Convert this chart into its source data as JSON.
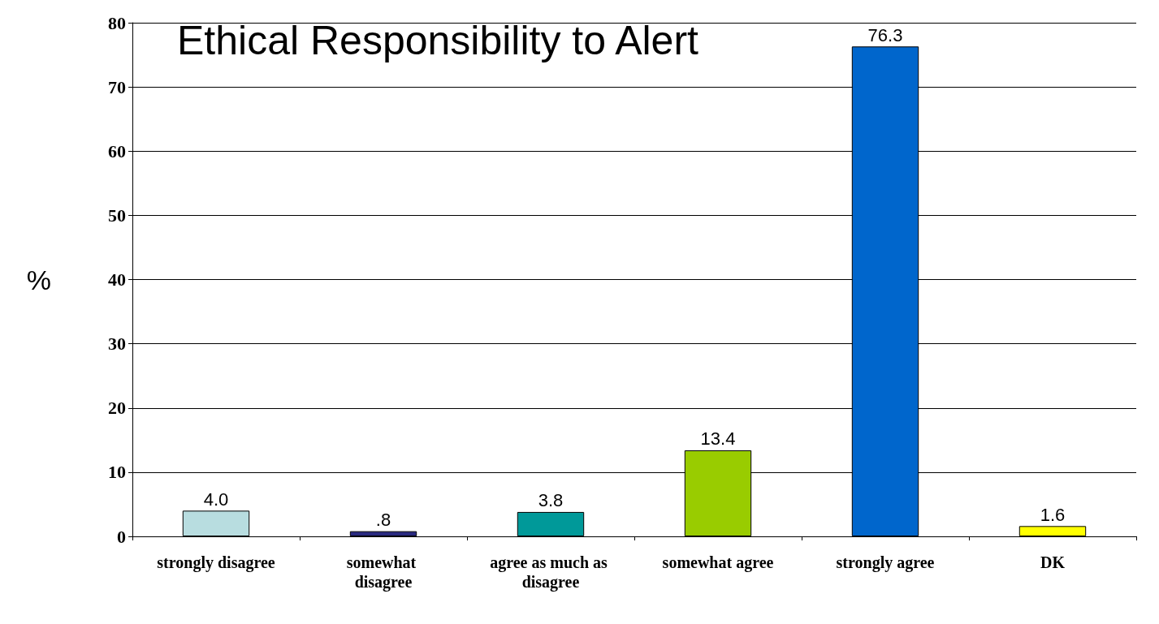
{
  "chart_data": {
    "type": "bar",
    "title": "Ethical Responsibility to Alert",
    "ylabel": "%",
    "categories": [
      "strongly disagree",
      "somewhat disagree",
      "agree as much as disagree",
      "somewhat agree",
      "strongly agree",
      "DK"
    ],
    "values": [
      4.0,
      0.8,
      3.8,
      13.4,
      76.3,
      1.6
    ],
    "value_labels": [
      "4.0",
      ".8",
      "3.8",
      "13.4",
      "76.3",
      "1.6"
    ],
    "colors": [
      "#b8dde0",
      "#2a2a80",
      "#009999",
      "#99cc00",
      "#0066cc",
      "#ffff00"
    ],
    "ylim": [
      0,
      80
    ],
    "yticks": [
      0,
      10,
      20,
      30,
      40,
      50,
      60,
      70,
      80
    ],
    "grid": "y"
  }
}
